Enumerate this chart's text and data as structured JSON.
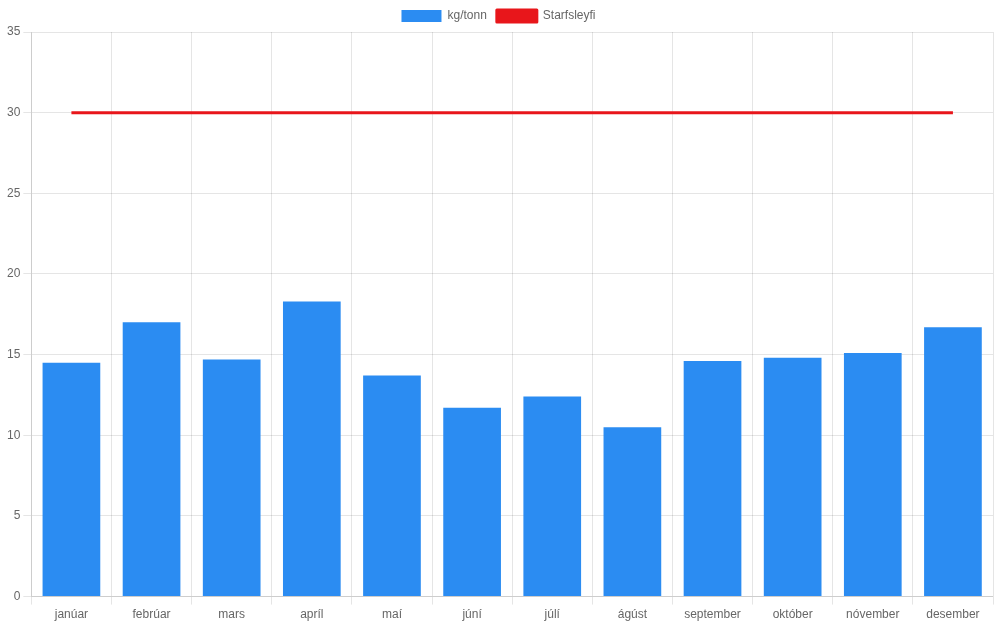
{
  "chart_data": {
    "type": "bar",
    "categories": [
      "janúar",
      "febrúar",
      "mars",
      "apríl",
      "maí",
      "júní",
      "júlí",
      "ágúst",
      "september",
      "október",
      "nóvember",
      "desember"
    ],
    "series": [
      {
        "name": "kg/tonn",
        "color": "#2b8cf2",
        "values": [
          14.5,
          17,
          14.7,
          18.3,
          13.7,
          11.7,
          12.4,
          10.5,
          14.6,
          14.8,
          15.1,
          16.7
        ]
      },
      {
        "name": "Starfsleyfi",
        "type": "line",
        "color": "#e8161b",
        "values": [
          30,
          30,
          30,
          30,
          30,
          30,
          30,
          30,
          30,
          30,
          30,
          30
        ]
      }
    ],
    "ylim": [
      0,
      35
    ],
    "yticks": [
      0,
      5,
      10,
      15,
      20,
      25,
      30,
      35
    ],
    "grid": true,
    "legend": "top",
    "marker": "none"
  }
}
